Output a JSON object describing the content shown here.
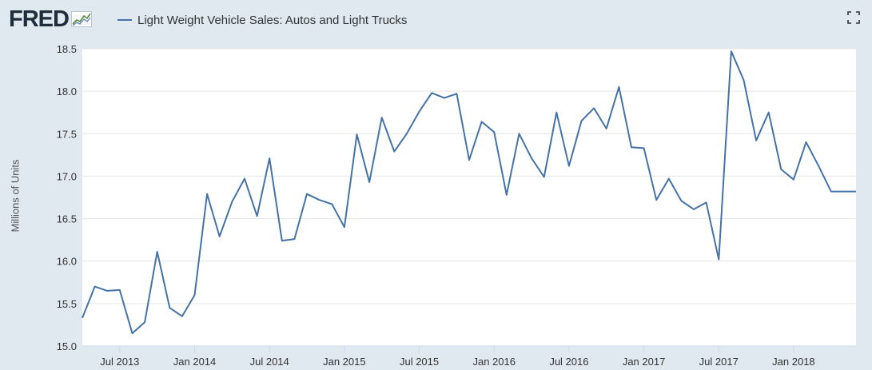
{
  "header": {
    "logo_text": "FRED",
    "logo_graph_icon": "line-graph-icon",
    "legend_label": "Light Weight Vehicle Sales: Autos and Light Trucks",
    "fullscreen_icon": "fullscreen-icon"
  },
  "colors": {
    "background": "#e1e9f0",
    "plot_background": "#ffffff",
    "series": "#4572a7",
    "grid": "#e6e6e6",
    "text": "#333333"
  },
  "chart_data": {
    "type": "line",
    "title": "",
    "xlabel": "",
    "ylabel": "Millions of Units",
    "ylim": [
      15.0,
      18.5
    ],
    "yticks": [
      "15.0",
      "15.5",
      "16.0",
      "16.5",
      "17.0",
      "17.5",
      "18.0",
      "18.5"
    ],
    "xticks": [
      "Jul 2013",
      "Jan 2014",
      "Jul 2014",
      "Jan 2015",
      "Jul 2015",
      "Jan 2016",
      "Jul 2016",
      "Jan 2017",
      "Jul 2017",
      "Jan 2018"
    ],
    "x_start": "2013-04",
    "x_end": "2018-06",
    "grid": true,
    "legend": "top-left",
    "series": [
      {
        "name": "Light Weight Vehicle Sales: Autos and Light Trucks",
        "x": [
          "2013-04",
          "2013-05",
          "2013-06",
          "2013-07",
          "2013-08",
          "2013-09",
          "2013-10",
          "2013-11",
          "2013-12",
          "2014-01",
          "2014-02",
          "2014-03",
          "2014-04",
          "2014-05",
          "2014-06",
          "2014-07",
          "2014-08",
          "2014-09",
          "2014-10",
          "2014-11",
          "2014-12",
          "2015-01",
          "2015-02",
          "2015-03",
          "2015-04",
          "2015-05",
          "2015-06",
          "2015-07",
          "2015-08",
          "2015-09",
          "2015-10",
          "2015-11",
          "2015-12",
          "2016-01",
          "2016-02",
          "2016-03",
          "2016-04",
          "2016-05",
          "2016-06",
          "2016-07",
          "2016-08",
          "2016-09",
          "2016-10",
          "2016-11",
          "2016-12",
          "2017-01",
          "2017-02",
          "2017-03",
          "2017-04",
          "2017-05",
          "2017-06",
          "2017-07",
          "2017-08",
          "2017-09",
          "2017-10",
          "2017-11",
          "2017-12",
          "2018-01",
          "2018-02",
          "2018-03",
          "2018-04",
          "2018-05",
          "2018-06"
        ],
        "values": [
          15.33,
          15.7,
          15.65,
          15.66,
          15.15,
          15.28,
          16.11,
          15.45,
          15.35,
          15.6,
          16.79,
          16.29,
          16.7,
          16.97,
          16.53,
          17.21,
          16.24,
          16.26,
          16.79,
          16.72,
          16.67,
          16.4,
          17.49,
          16.93,
          17.69,
          17.29,
          17.5,
          17.76,
          17.98,
          17.92,
          17.97,
          17.19,
          17.64,
          17.52,
          16.78,
          17.5,
          17.21,
          16.99,
          17.75,
          17.12,
          17.65,
          17.8,
          17.56,
          18.05,
          17.34,
          17.33,
          16.72,
          16.97,
          16.71,
          16.61,
          16.69,
          16.02,
          18.47,
          18.13,
          17.42,
          17.75,
          17.08,
          16.96,
          17.4,
          17.12,
          16.82,
          16.82,
          16.82
        ]
      }
    ]
  }
}
